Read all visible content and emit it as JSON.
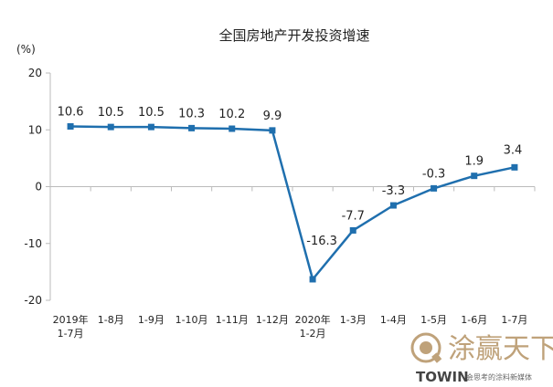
{
  "chart_data": {
    "type": "line",
    "title": "全国房地产开发投资增速",
    "ylabel": "(%)",
    "xlabel": "",
    "ylim": [
      -20,
      20
    ],
    "yticks": [
      -20,
      -10,
      0,
      10,
      20
    ],
    "grid": false,
    "categories": [
      [
        "2019年",
        "1-7月"
      ],
      [
        "1-8月"
      ],
      [
        "1-9月"
      ],
      [
        "1-10月"
      ],
      [
        "1-11月"
      ],
      [
        "1-12月"
      ],
      [
        "2020年",
        "1-2月"
      ],
      [
        "1-3月"
      ],
      [
        "1-4月"
      ],
      [
        "1-5月"
      ],
      [
        "1-6月"
      ],
      [
        "1-7月"
      ]
    ],
    "series": [
      {
        "values": [
          10.6,
          10.5,
          10.5,
          10.3,
          10.2,
          9.9,
          -16.3,
          -7.7,
          -3.3,
          -0.3,
          1.9,
          3.4
        ],
        "labels": [
          "10.6",
          "10.5",
          "10.5",
          "10.3",
          "10.2",
          "9.9",
          "-16.3",
          "-7.7",
          "-3.3",
          "-0.3",
          "1.9",
          "3.4"
        ],
        "color": "#1f6fae"
      }
    ]
  },
  "watermark": {
    "chinese": "涂赢天下",
    "english": "TOWIN",
    "subtitle": "会思考的涂料新媒体",
    "color": "#bfa27a"
  }
}
